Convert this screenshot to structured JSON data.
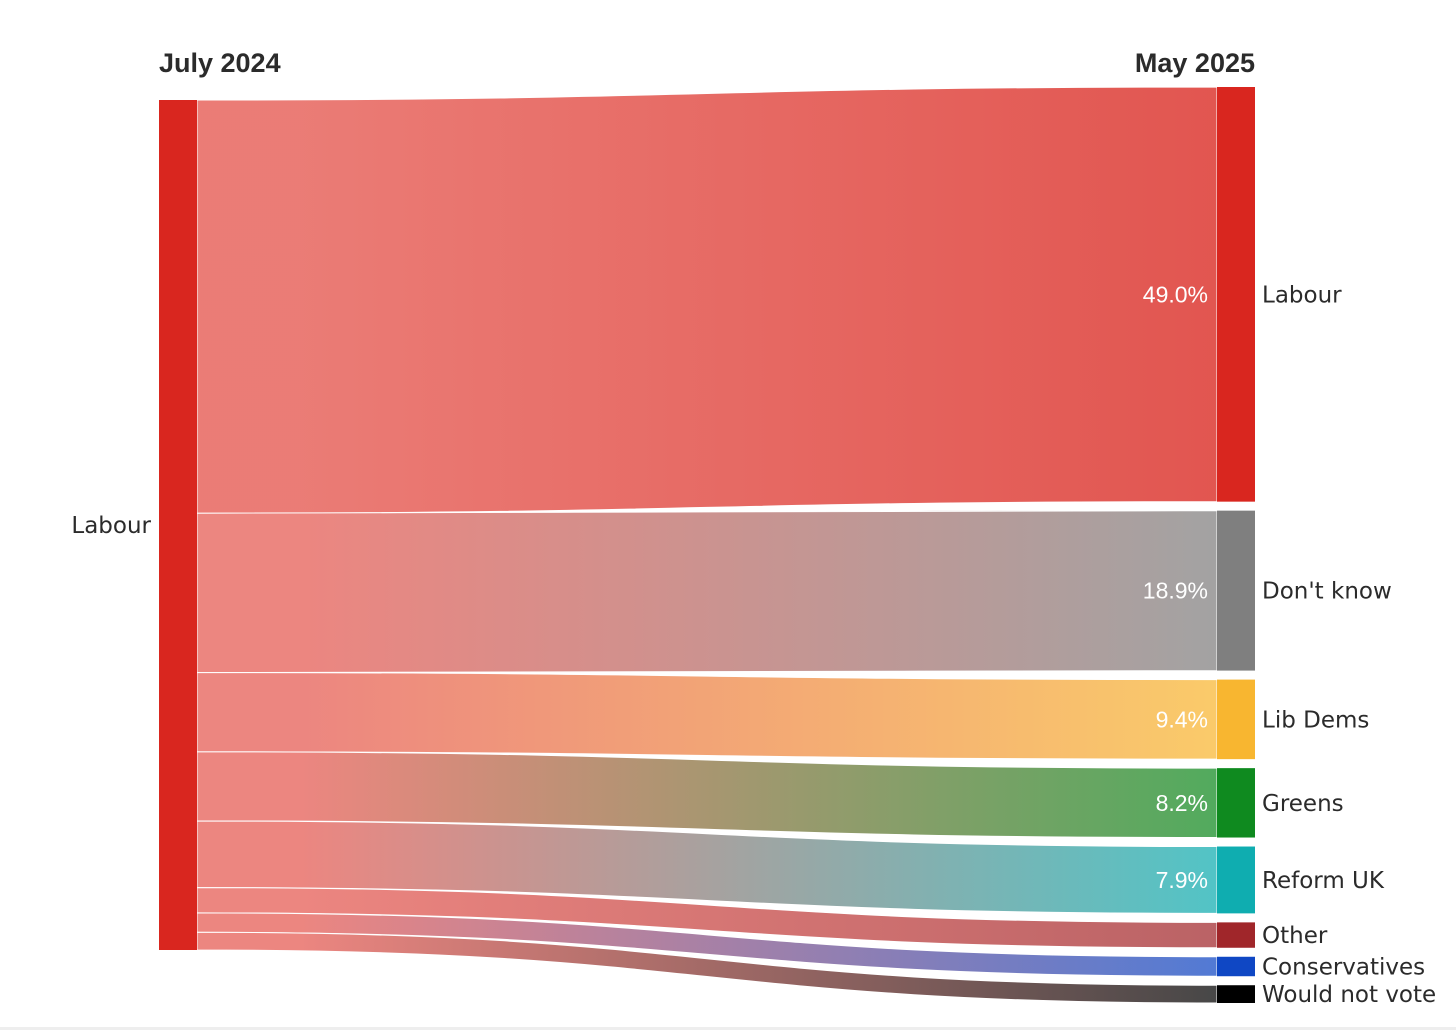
{
  "chart_data": {
    "type": "sankey",
    "left_title": "July 2024",
    "right_title": "May 2025",
    "source": {
      "label": "Labour",
      "color": "#d9261f"
    },
    "flows": [
      {
        "label": "Labour",
        "value": 49.0,
        "value_label": "49.0%",
        "color": "#d9261f",
        "label_shown": true
      },
      {
        "label": "Don't know",
        "value": 18.9,
        "value_label": "18.9%",
        "color": "#7f7f7f",
        "label_shown": true
      },
      {
        "label": "Lib Dems",
        "value": 9.4,
        "value_label": "9.4%",
        "color": "#f8b630",
        "label_shown": true
      },
      {
        "label": "Greens",
        "value": 8.2,
        "value_label": "8.2%",
        "color": "#0f8a1f",
        "label_shown": true
      },
      {
        "label": "Reform UK",
        "value": 7.9,
        "value_label": "7.9%",
        "color": "#0fadb0",
        "label_shown": true
      },
      {
        "label": "Other",
        "value": 3.0,
        "value_label": "",
        "color": "#a0262a",
        "label_shown": false
      },
      {
        "label": "Conservatives",
        "value": 2.3,
        "value_label": "",
        "color": "#0f47c4",
        "label_shown": false
      },
      {
        "label": "Would not vote",
        "value": 2.1,
        "value_label": "",
        "color": "#000000",
        "label_shown": false
      }
    ],
    "colors": {
      "link_base": "#e5574f"
    }
  }
}
